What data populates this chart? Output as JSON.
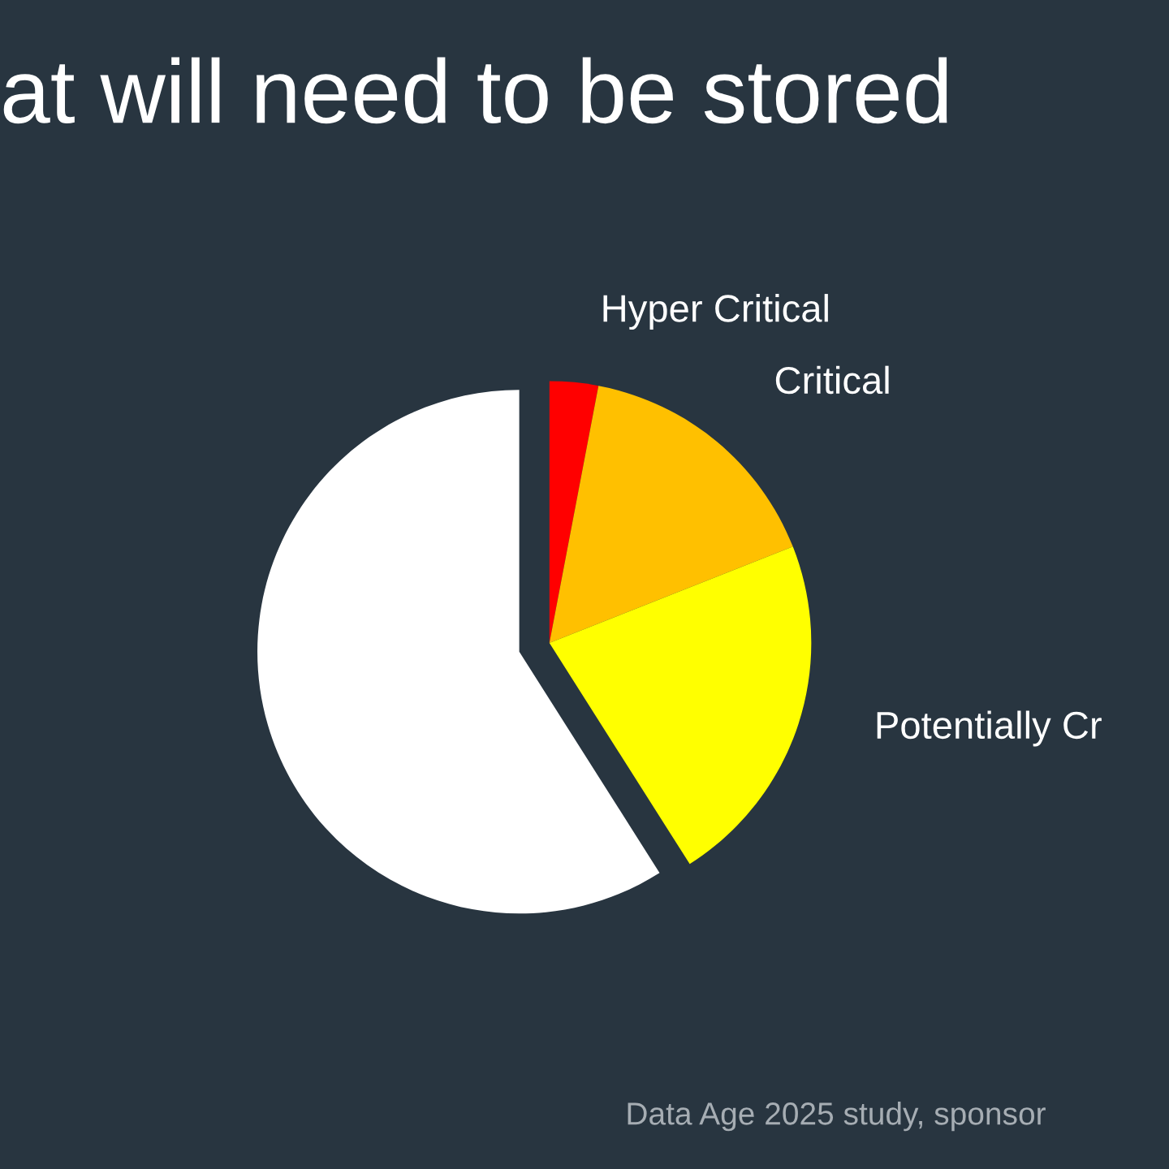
{
  "chart_data": {
    "type": "pie",
    "title": "at will need to be stored",
    "categories": [
      "Hyper Critical",
      "Critical",
      "Potentially Cr",
      null
    ],
    "values": [
      3,
      16,
      22,
      59
    ],
    "colors": [
      "#ff0000",
      "#ffc000",
      "#ffff00",
      "#ffffff"
    ],
    "annotations": [
      "Data Age 2025 study, sponsor"
    ]
  }
}
